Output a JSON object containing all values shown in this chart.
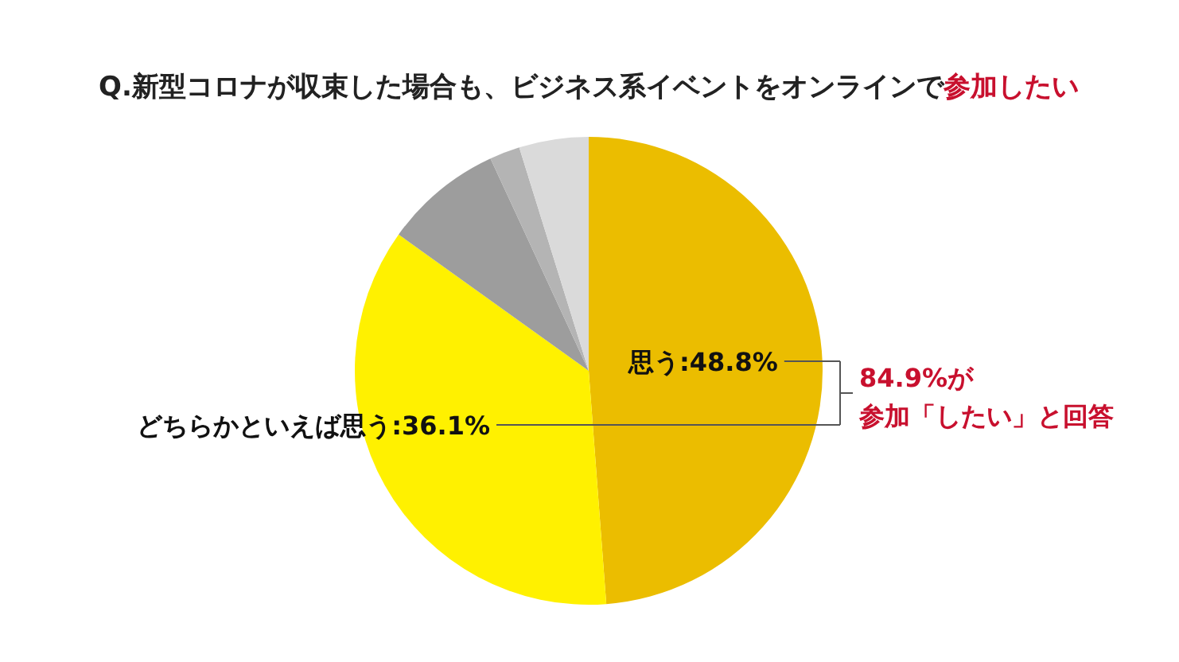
{
  "chart_data": {
    "type": "pie",
    "title": "Q.新型コロナが収束した場合も、ビジネス系イベントをオンラインで",
    "subtitle": "参加したい",
    "categories": [
      "思う",
      "どちらかといえば思う",
      null,
      null,
      null
    ],
    "values": [
      48.8,
      36.1,
      8.2,
      2.1,
      4.8
    ],
    "value_labels": [
      "48.8%",
      "36.1%",
      null,
      null,
      null
    ],
    "colors": [
      "#ebbd00",
      "#fff100",
      "#9d9d9d",
      "#b4b4b4",
      "#dadada"
    ],
    "annotations": [
      "84.9%が",
      "参加「したい」と回答"
    ]
  }
}
